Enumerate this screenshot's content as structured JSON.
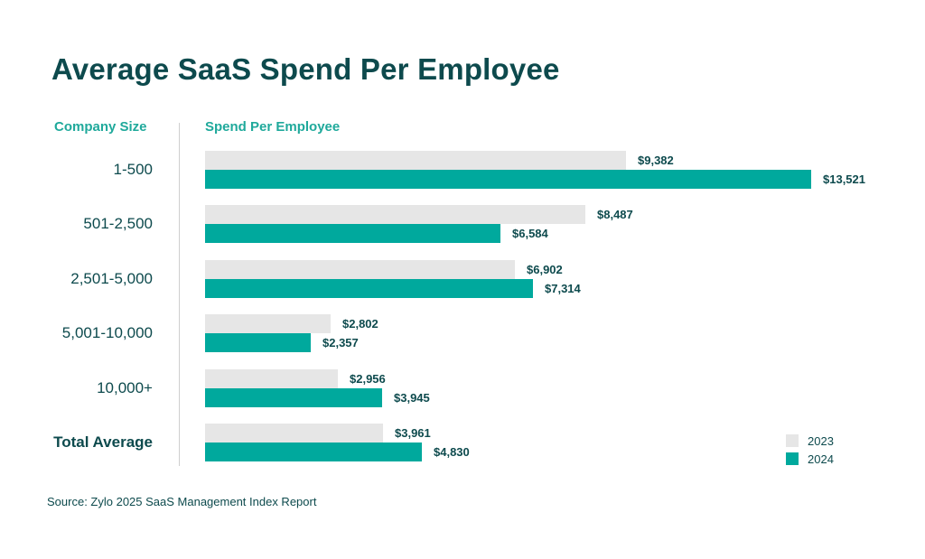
{
  "chart_data": {
    "type": "bar",
    "orientation": "horizontal",
    "title": "Average SaaS Spend Per Employee",
    "category_axis_header": "Company Size",
    "value_axis_header": "Spend Per Employee",
    "categories": [
      "1-500",
      "501-2,500",
      "2,501-5,000",
      "5,001-10,000",
      "10,000+",
      "Total Average"
    ],
    "series": [
      {
        "name": "2023",
        "color": "#e6e6e6",
        "values": [
          9382,
          8487,
          6902,
          2802,
          2956,
          3961
        ],
        "labels": [
          "$9,382",
          "$8,487",
          "$6,902",
          "$2,802",
          "$2,956",
          "$3,961"
        ]
      },
      {
        "name": "2024",
        "color": "#00a99d",
        "values": [
          13521,
          6584,
          7314,
          2357,
          3945,
          4830
        ],
        "labels": [
          "$13,521",
          "$6,584",
          "$7,314",
          "$2,357",
          "$3,945",
          "$4,830"
        ]
      }
    ],
    "xlim": [
      0,
      13521
    ],
    "grid": false,
    "legend_position": "bottom-right"
  },
  "source": "Source: Zylo 2025 SaaS Management Index Report"
}
